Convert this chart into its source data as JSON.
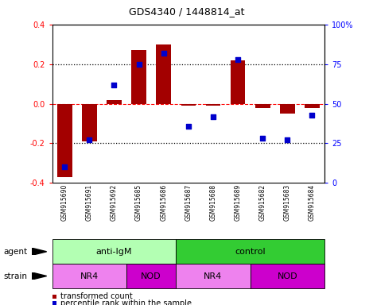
{
  "title": "GDS4340 / 1448814_at",
  "samples": [
    "GSM915690",
    "GSM915691",
    "GSM915692",
    "GSM915685",
    "GSM915686",
    "GSM915687",
    "GSM915688",
    "GSM915689",
    "GSM915682",
    "GSM915683",
    "GSM915684"
  ],
  "transformed_count": [
    -0.37,
    -0.19,
    0.02,
    0.27,
    0.3,
    -0.01,
    -0.01,
    0.22,
    -0.02,
    -0.05,
    -0.02
  ],
  "percentile_rank": [
    10,
    27,
    62,
    75,
    82,
    36,
    42,
    78,
    28,
    27,
    43
  ],
  "bar_color": "#a30000",
  "dot_color": "#0000cc",
  "ylim_left": [
    -0.4,
    0.4
  ],
  "ylim_right": [
    0,
    100
  ],
  "yticks_left": [
    -0.4,
    -0.2,
    0.0,
    0.2,
    0.4
  ],
  "yticks_right": [
    0,
    25,
    50,
    75,
    100
  ],
  "ytick_labels_right": [
    "0",
    "25",
    "50",
    "75",
    "100%"
  ],
  "agent_groups": [
    {
      "label": "anti-IgM",
      "start": 0,
      "end": 5,
      "color": "#b3ffb3"
    },
    {
      "label": "control",
      "start": 5,
      "end": 11,
      "color": "#33cc33"
    }
  ],
  "strain_groups": [
    {
      "label": "NR4",
      "start": 0,
      "end": 3,
      "color": "#ee82ee"
    },
    {
      "label": "NOD",
      "start": 3,
      "end": 5,
      "color": "#cc00cc"
    },
    {
      "label": "NR4",
      "start": 5,
      "end": 8,
      "color": "#ee82ee"
    },
    {
      "label": "NOD",
      "start": 8,
      "end": 11,
      "color": "#cc00cc"
    }
  ],
  "legend_items": [
    {
      "label": "transformed count",
      "color": "#a30000"
    },
    {
      "label": "percentile rank within the sample",
      "color": "#0000cc"
    }
  ],
  "agent_label": "agent",
  "strain_label": "strain",
  "background_color": "#ffffff",
  "tick_area_color": "#c8c8c8"
}
